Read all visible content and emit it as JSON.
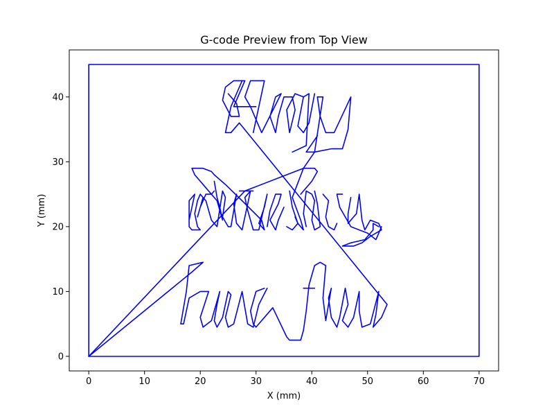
{
  "chart_data": {
    "type": "line",
    "title": "G-code Preview from Top View",
    "xlabel": "X (mm)",
    "ylabel": "Y (mm)",
    "xlim": [
      -3.5,
      73.5
    ],
    "ylim": [
      -2.25,
      47.25
    ],
    "xticks": [
      0,
      10,
      20,
      30,
      40,
      50,
      60,
      70
    ],
    "yticks": [
      0,
      10,
      20,
      30,
      40
    ],
    "grid": false,
    "line_color": "#0000ff",
    "series": [
      {
        "points": [
          [
            0,
            0
          ],
          [
            0,
            45
          ],
          [
            70,
            45
          ],
          [
            70,
            0
          ],
          [
            0,
            0
          ]
        ]
      },
      {
        "points": [
          [
            0,
            0
          ],
          [
            28,
            25.5
          ],
          [
            38.5,
            29
          ],
          [
            40.5,
            31.5
          ],
          [
            43.5,
            32
          ],
          [
            45.5,
            32
          ],
          [
            46.5,
            35
          ],
          [
            47,
            40
          ],
          [
            44,
            34.5
          ],
          [
            42.5,
            34.5
          ],
          [
            41.5,
            37
          ],
          [
            41,
            40
          ],
          [
            42,
            40
          ],
          [
            40.5,
            31.5
          ],
          [
            39,
            31.5
          ],
          [
            41,
            34
          ]
        ]
      },
      {
        "points": [
          [
            40.5,
            40.5
          ],
          [
            39.5,
            36
          ],
          [
            38.5,
            34.5
          ],
          [
            37.5,
            35.5
          ],
          [
            38.5,
            40
          ],
          [
            39.5,
            40.5
          ],
          [
            39,
            32.5
          ],
          [
            36.5,
            31.5
          ]
        ]
      },
      {
        "points": [
          [
            38.5,
            40
          ],
          [
            37,
            40.5
          ],
          [
            35.5,
            38
          ],
          [
            36,
            34.5
          ],
          [
            37,
            38
          ],
          [
            36.5,
            40
          ],
          [
            35,
            40
          ],
          [
            34,
            37
          ],
          [
            33.5,
            34.5
          ],
          [
            32.5,
            37
          ],
          [
            33.5,
            40
          ],
          [
            34.5,
            40.5
          ],
          [
            31,
            34.5
          ],
          [
            29,
            38.5
          ],
          [
            28,
            40
          ],
          [
            29,
            42.5
          ],
          [
            31.5,
            42.5
          ],
          [
            30.5,
            38.5
          ],
          [
            29.5,
            34.5
          ]
        ]
      },
      {
        "points": [
          [
            30,
            38.5
          ],
          [
            26,
            38.5
          ],
          [
            28,
            42.5
          ],
          [
            26,
            42.5
          ],
          [
            24.5,
            41.5
          ],
          [
            24,
            39.5
          ],
          [
            25.5,
            37
          ],
          [
            27,
            37
          ],
          [
            26.5,
            39
          ],
          [
            25,
            40.5
          ]
        ]
      },
      {
        "points": [
          [
            27.5,
            42.5
          ],
          [
            25.5,
            38.5
          ],
          [
            24.5,
            34.5
          ],
          [
            25.5,
            34.5
          ],
          [
            27,
            36
          ],
          [
            53.5,
            8
          ],
          [
            52.5,
            6
          ],
          [
            51,
            4.5
          ],
          [
            51.5,
            6.5
          ],
          [
            52,
            10
          ],
          [
            50.5,
            5
          ],
          [
            49,
            4.5
          ],
          [
            48.5,
            7
          ],
          [
            48.5,
            10
          ],
          [
            47.5,
            6
          ],
          [
            46.5,
            4.5
          ],
          [
            45.5,
            5.5
          ],
          [
            46.5,
            8
          ],
          [
            46,
            10.5
          ],
          [
            45,
            6
          ],
          [
            44.5,
            4.5
          ],
          [
            43.5,
            6
          ],
          [
            43,
            9
          ],
          [
            43.5,
            10.5
          ],
          [
            42.5,
            5.5
          ],
          [
            42,
            9
          ],
          [
            42.5,
            14
          ],
          [
            41.5,
            14.5
          ],
          [
            40.5,
            14
          ],
          [
            39.5,
            11
          ],
          [
            39,
            7
          ],
          [
            38.5,
            4
          ],
          [
            38,
            2.5
          ],
          [
            37,
            2.5
          ],
          [
            36,
            2.5
          ],
          [
            35.5,
            3
          ],
          [
            33,
            7.5
          ],
          [
            31.5,
            6
          ],
          [
            30,
            4.5
          ],
          [
            29.5,
            5
          ],
          [
            29,
            7
          ],
          [
            30,
            10
          ],
          [
            31.5,
            10.5
          ]
        ]
      },
      {
        "points": [
          [
            32,
            10.5
          ],
          [
            30.5,
            8
          ],
          [
            29.5,
            4.5
          ],
          [
            28.5,
            5
          ],
          [
            28,
            7.5
          ],
          [
            27.5,
            10
          ],
          [
            26,
            5
          ],
          [
            25,
            4.5
          ],
          [
            24.5,
            6
          ],
          [
            25.5,
            9.5
          ],
          [
            25,
            10
          ],
          [
            24,
            6
          ],
          [
            23,
            4.5
          ],
          [
            22.5,
            5.5
          ],
          [
            23,
            8
          ],
          [
            23.5,
            10
          ],
          [
            22,
            5.5
          ],
          [
            20.5,
            4.5
          ],
          [
            20,
            6
          ],
          [
            21.5,
            10
          ],
          [
            20,
            10
          ],
          [
            18,
            9
          ],
          [
            17,
            5
          ],
          [
            16.5,
            5
          ],
          [
            17.5,
            10
          ],
          [
            18,
            14
          ],
          [
            20.5,
            14.5
          ],
          [
            18.5,
            13
          ],
          [
            0,
            0
          ]
        ]
      },
      {
        "points": [
          [
            40.5,
            10.5
          ],
          [
            38.5,
            10.5
          ]
        ]
      },
      {
        "points": [
          [
            27,
            25.5
          ],
          [
            29.5,
            25.5
          ]
        ]
      },
      {
        "points": [
          [
            22.5,
            27
          ],
          [
            23,
            24.5
          ],
          [
            23.5,
            23
          ],
          [
            24,
            21
          ],
          [
            23,
            24
          ],
          [
            21,
            26
          ],
          [
            19,
            28
          ],
          [
            18.5,
            29
          ],
          [
            20.5,
            29
          ],
          [
            22,
            28.5
          ],
          [
            22.5,
            28
          ],
          [
            24.5,
            26.5
          ],
          [
            27.5,
            24
          ],
          [
            31,
            21
          ],
          [
            31.5,
            19.5
          ],
          [
            30.5,
            20.5
          ],
          [
            31.5,
            23
          ],
          [
            32,
            25
          ],
          [
            30.5,
            19.5
          ],
          [
            29.5,
            19.5
          ],
          [
            28.5,
            22.5
          ],
          [
            28,
            24.5
          ],
          [
            29,
            25.5
          ],
          [
            27.5,
            19.5
          ],
          [
            26.5,
            20.5
          ],
          [
            26,
            23.5
          ],
          [
            26.5,
            25
          ],
          [
            25.5,
            20
          ],
          [
            25,
            20
          ],
          [
            24,
            21.5
          ],
          [
            24.5,
            24.5
          ],
          [
            24,
            25.5
          ],
          [
            23,
            20
          ],
          [
            22,
            21
          ],
          [
            21,
            24
          ],
          [
            20,
            25
          ],
          [
            19.5,
            24
          ],
          [
            19,
            22
          ],
          [
            19.5,
            20
          ],
          [
            20,
            19.5
          ],
          [
            18.5,
            19.5
          ],
          [
            18,
            20
          ],
          [
            18,
            24
          ],
          [
            19,
            25
          ],
          [
            18,
            21
          ]
        ]
      },
      {
        "points": [
          [
            22.5,
            25.5
          ],
          [
            22,
            25
          ],
          [
            21,
            25
          ],
          [
            20,
            23
          ],
          [
            19.5,
            21.5
          ],
          [
            20.5,
            24.5
          ]
        ]
      },
      {
        "points": [
          [
            52.5,
            20
          ],
          [
            51.5,
            18
          ],
          [
            50,
            19
          ],
          [
            48.5,
            19.5
          ],
          [
            47,
            20
          ],
          [
            45,
            23
          ],
          [
            44.5,
            25
          ],
          [
            45.5,
            25
          ]
        ]
      },
      {
        "points": [
          [
            35,
            23
          ],
          [
            34,
            21
          ],
          [
            33.5,
            19.5
          ],
          [
            32.5,
            21
          ],
          [
            34,
            23.5
          ],
          [
            34.5,
            25
          ],
          [
            33.5,
            25
          ],
          [
            32.5,
            22.5
          ],
          [
            32,
            20
          ]
        ]
      },
      {
        "points": [
          [
            36,
            25.5
          ],
          [
            36.5,
            23
          ],
          [
            37.5,
            20.5
          ],
          [
            36.5,
            19.5
          ],
          [
            35.5,
            20
          ]
        ]
      },
      {
        "points": [
          [
            38,
            25
          ],
          [
            38.5,
            25.5
          ],
          [
            39,
            26
          ],
          [
            40,
            27
          ],
          [
            41,
            28.5
          ],
          [
            40.5,
            29
          ],
          [
            38.5,
            29
          ],
          [
            36.5,
            24.5
          ],
          [
            38,
            21
          ],
          [
            38.5,
            19.5
          ],
          [
            37.5,
            20.5
          ],
          [
            37,
            21.5
          ]
        ]
      },
      {
        "points": [
          [
            44.5,
            20.5
          ],
          [
            44,
            19.5
          ],
          [
            43,
            20
          ],
          [
            42.5,
            21.5
          ],
          [
            43,
            24
          ],
          [
            42,
            25
          ]
        ]
      },
      {
        "points": [
          [
            40.5,
            25.5
          ],
          [
            41,
            23.5
          ],
          [
            41.5,
            20
          ],
          [
            40.5,
            19.5
          ],
          [
            40,
            21
          ],
          [
            40.5,
            24
          ],
          [
            40,
            25
          ],
          [
            39,
            25.5
          ],
          [
            38.5,
            22
          ],
          [
            39,
            20
          ]
        ]
      },
      {
        "points": [
          [
            47,
            24.5
          ],
          [
            46.5,
            22
          ],
          [
            46.5,
            20.5
          ],
          [
            47.5,
            21.5
          ],
          [
            48,
            22
          ],
          [
            48.5,
            25
          ],
          [
            49,
            21
          ],
          [
            49.5,
            19.5
          ],
          [
            50.5,
            21
          ],
          [
            52,
            20.5
          ],
          [
            52.5,
            19.5
          ],
          [
            51.5,
            19
          ],
          [
            50.5,
            18.5
          ],
          [
            49,
            17.5
          ],
          [
            47.5,
            17
          ],
          [
            45.5,
            17
          ],
          [
            47,
            17.5
          ],
          [
            49.5,
            18
          ],
          [
            51,
            19.5
          ],
          [
            51,
            20.5
          ],
          [
            52,
            20
          ]
        ]
      }
    ]
  }
}
